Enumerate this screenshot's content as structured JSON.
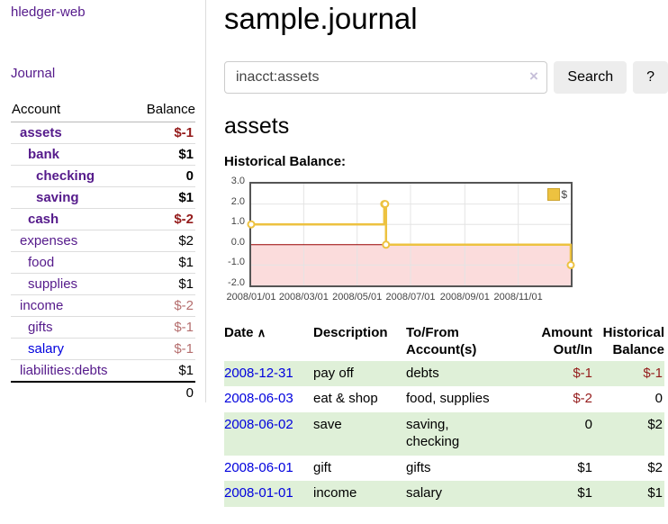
{
  "app": {
    "title": "hledger-web",
    "nav": {
      "journal": "Journal"
    }
  },
  "sidebar": {
    "accounts_table": {
      "account_header": "Account",
      "balance_header": "Balance",
      "rows": [
        {
          "name": "assets",
          "balance": "$-1",
          "depth": 0,
          "matched": true,
          "negative": "strong",
          "link_color": "purple"
        },
        {
          "name": "bank",
          "balance": "$1",
          "depth": 1,
          "matched": true,
          "negative": "none",
          "link_color": "purple"
        },
        {
          "name": "checking",
          "balance": "0",
          "depth": 2,
          "matched": true,
          "negative": "none",
          "link_color": "purple"
        },
        {
          "name": "saving",
          "balance": "$1",
          "depth": 2,
          "matched": true,
          "negative": "none",
          "link_color": "purple"
        },
        {
          "name": "cash",
          "balance": "$-2",
          "depth": 1,
          "matched": true,
          "negative": "strong",
          "link_color": "purple"
        },
        {
          "name": "expenses",
          "balance": "$2",
          "depth": 0,
          "matched": false,
          "negative": "none",
          "link_color": "purple"
        },
        {
          "name": "food",
          "balance": "$1",
          "depth": 1,
          "matched": false,
          "negative": "none",
          "link_color": "purple"
        },
        {
          "name": "supplies",
          "balance": "$1",
          "depth": 1,
          "matched": false,
          "negative": "none",
          "link_color": "purple"
        },
        {
          "name": "income",
          "balance": "$-2",
          "depth": 0,
          "matched": false,
          "negative": "soft",
          "link_color": "purple"
        },
        {
          "name": "gifts",
          "balance": "$-1",
          "depth": 1,
          "matched": false,
          "negative": "soft",
          "link_color": "purple"
        },
        {
          "name": "salary",
          "balance": "$-1",
          "depth": 1,
          "matched": false,
          "negative": "soft",
          "link_color": "blue"
        },
        {
          "name": "liabilities:debts",
          "balance": "$1",
          "depth": 0,
          "matched": false,
          "negative": "none",
          "link_color": "purple"
        }
      ],
      "total": "0"
    }
  },
  "main": {
    "journal_title": "sample.journal",
    "search": {
      "value": "inacct:assets",
      "clear_icon": "×",
      "search_button": "Search",
      "help_button": "?"
    },
    "account_heading": "assets",
    "chart_title": "Historical Balance:"
  },
  "chart_data": {
    "type": "line",
    "step": true,
    "title": "Historical Balance:",
    "legend_label": "$",
    "legend_position": "top-right",
    "series": [
      {
        "name": "$",
        "points": [
          [
            "2008-01-01",
            1
          ],
          [
            "2008-06-01",
            2
          ],
          [
            "2008-06-02",
            2
          ],
          [
            "2008-06-03",
            0
          ],
          [
            "2008-12-31",
            -1
          ]
        ]
      }
    ],
    "xlim": [
      "2008-01-01",
      "2008-12-31"
    ],
    "ylim": [
      -2,
      3
    ],
    "yticks": [
      3.0,
      2.0,
      1.0,
      0.0,
      -1.0,
      -2.0
    ],
    "ytick_labels": [
      "3.0",
      "2.0",
      "1.0",
      "0.0",
      "-1.0",
      "-2.0"
    ],
    "xticks": [
      "2008-01-01",
      "2008-03-01",
      "2008-05-01",
      "2008-07-01",
      "2008-09-01",
      "2008-11-01"
    ],
    "xtick_labels": [
      "2008/01/01",
      "2008/03/01",
      "2008/05/01",
      "2008/07/01",
      "2008/09/01",
      "2008/11/01"
    ],
    "grid": true,
    "negative_region_shaded": true
  },
  "register": {
    "headers": {
      "date": "Date",
      "description": "Description",
      "accounts": "To/From Account(s)",
      "amount": "Amount Out/In",
      "balance": "Historical Balance"
    },
    "sort_indicator": "∧",
    "rows": [
      {
        "date": "2008-12-31",
        "description": "pay off",
        "accounts": "debts",
        "amount": "$-1",
        "balance": "$-1",
        "amount_negative": true,
        "balance_negative": true
      },
      {
        "date": "2008-06-03",
        "description": "eat & shop",
        "accounts": "food, supplies",
        "amount": "$-2",
        "balance": "0",
        "amount_negative": true,
        "balance_negative": false
      },
      {
        "date": "2008-06-02",
        "description": "save",
        "accounts": "saving, checking",
        "amount": "0",
        "balance": "$2",
        "amount_negative": false,
        "balance_negative": false
      },
      {
        "date": "2008-06-01",
        "description": "gift",
        "accounts": "gifts",
        "amount": "$1",
        "balance": "$2",
        "amount_negative": false,
        "balance_negative": false
      },
      {
        "date": "2008-01-01",
        "description": "income",
        "accounts": "salary",
        "amount": "$1",
        "balance": "$1",
        "amount_negative": false,
        "balance_negative": false
      }
    ]
  },
  "colors": {
    "link_purple": "#551a8b",
    "link_blue": "#0000dd",
    "negative_strong": "#941b1b",
    "negative_soft": "#b56e6e",
    "row_stripe_green": "#dff0d8",
    "chart_line": "#edc240",
    "chart_negative_fill": "#fbdcdc",
    "chart_zero_line": "#990000",
    "chart_grid": "#e4e4e4"
  }
}
